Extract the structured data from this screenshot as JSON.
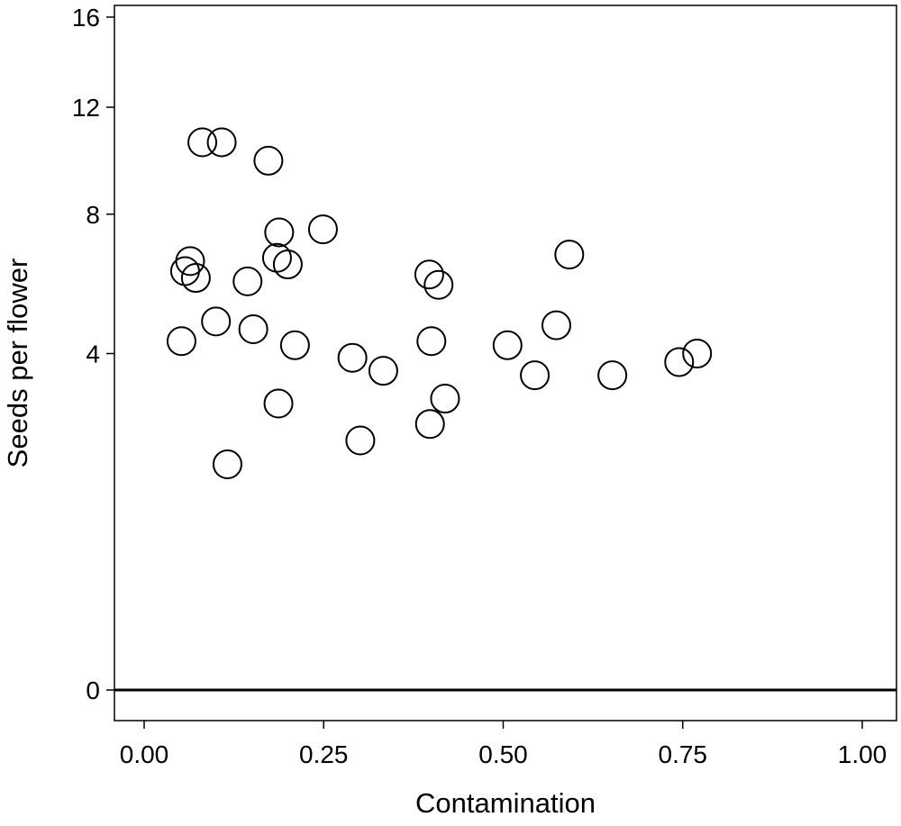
{
  "chart_data": {
    "type": "scatter",
    "title": "",
    "xlabel": "Contamination",
    "ylabel": "Seeds per flower",
    "x_ticks": [
      {
        "value": 0.0,
        "label": "0.00"
      },
      {
        "value": 0.25,
        "label": "0.25"
      },
      {
        "value": 0.5,
        "label": "0.50"
      },
      {
        "value": 0.75,
        "label": "0.75"
      },
      {
        "value": 1.0,
        "label": "1.00"
      }
    ],
    "y_ticks": [
      {
        "value": 0,
        "label": "0"
      },
      {
        "value": 4,
        "label": "4"
      },
      {
        "value": 8,
        "label": "8"
      },
      {
        "value": 12,
        "label": "12"
      },
      {
        "value": 16,
        "label": "16"
      }
    ],
    "xlim": [
      -0.05,
      1.05
    ],
    "ylim": [
      -1,
      16.2
    ],
    "y_scale": "sqrt",
    "grid": false,
    "reference_line_y": 0,
    "marker": "open-circle",
    "points": [
      {
        "x": 0.081,
        "y": 10.6
      },
      {
        "x": 0.108,
        "y": 10.6
      },
      {
        "x": 0.173,
        "y": 9.9
      },
      {
        "x": 0.188,
        "y": 7.4
      },
      {
        "x": 0.249,
        "y": 7.5
      },
      {
        "x": 0.064,
        "y": 6.5
      },
      {
        "x": 0.057,
        "y": 6.2
      },
      {
        "x": 0.072,
        "y": 6.0
      },
      {
        "x": 0.185,
        "y": 6.6
      },
      {
        "x": 0.2,
        "y": 6.4
      },
      {
        "x": 0.144,
        "y": 5.9
      },
      {
        "x": 0.397,
        "y": 6.1
      },
      {
        "x": 0.41,
        "y": 5.8
      },
      {
        "x": 0.592,
        "y": 6.7
      },
      {
        "x": 0.1,
        "y": 4.8
      },
      {
        "x": 0.152,
        "y": 4.6
      },
      {
        "x": 0.052,
        "y": 4.3
      },
      {
        "x": 0.21,
        "y": 4.2
      },
      {
        "x": 0.4,
        "y": 4.3
      },
      {
        "x": 0.506,
        "y": 4.2
      },
      {
        "x": 0.574,
        "y": 4.7
      },
      {
        "x": 0.29,
        "y": 3.9
      },
      {
        "x": 0.333,
        "y": 3.6
      },
      {
        "x": 0.544,
        "y": 3.5
      },
      {
        "x": 0.652,
        "y": 3.5
      },
      {
        "x": 0.745,
        "y": 3.8
      },
      {
        "x": 0.77,
        "y": 4.0
      },
      {
        "x": 0.187,
        "y": 2.9
      },
      {
        "x": 0.419,
        "y": 3.0
      },
      {
        "x": 0.398,
        "y": 2.5
      },
      {
        "x": 0.301,
        "y": 2.2
      },
      {
        "x": 0.116,
        "y": 1.8
      }
    ]
  }
}
